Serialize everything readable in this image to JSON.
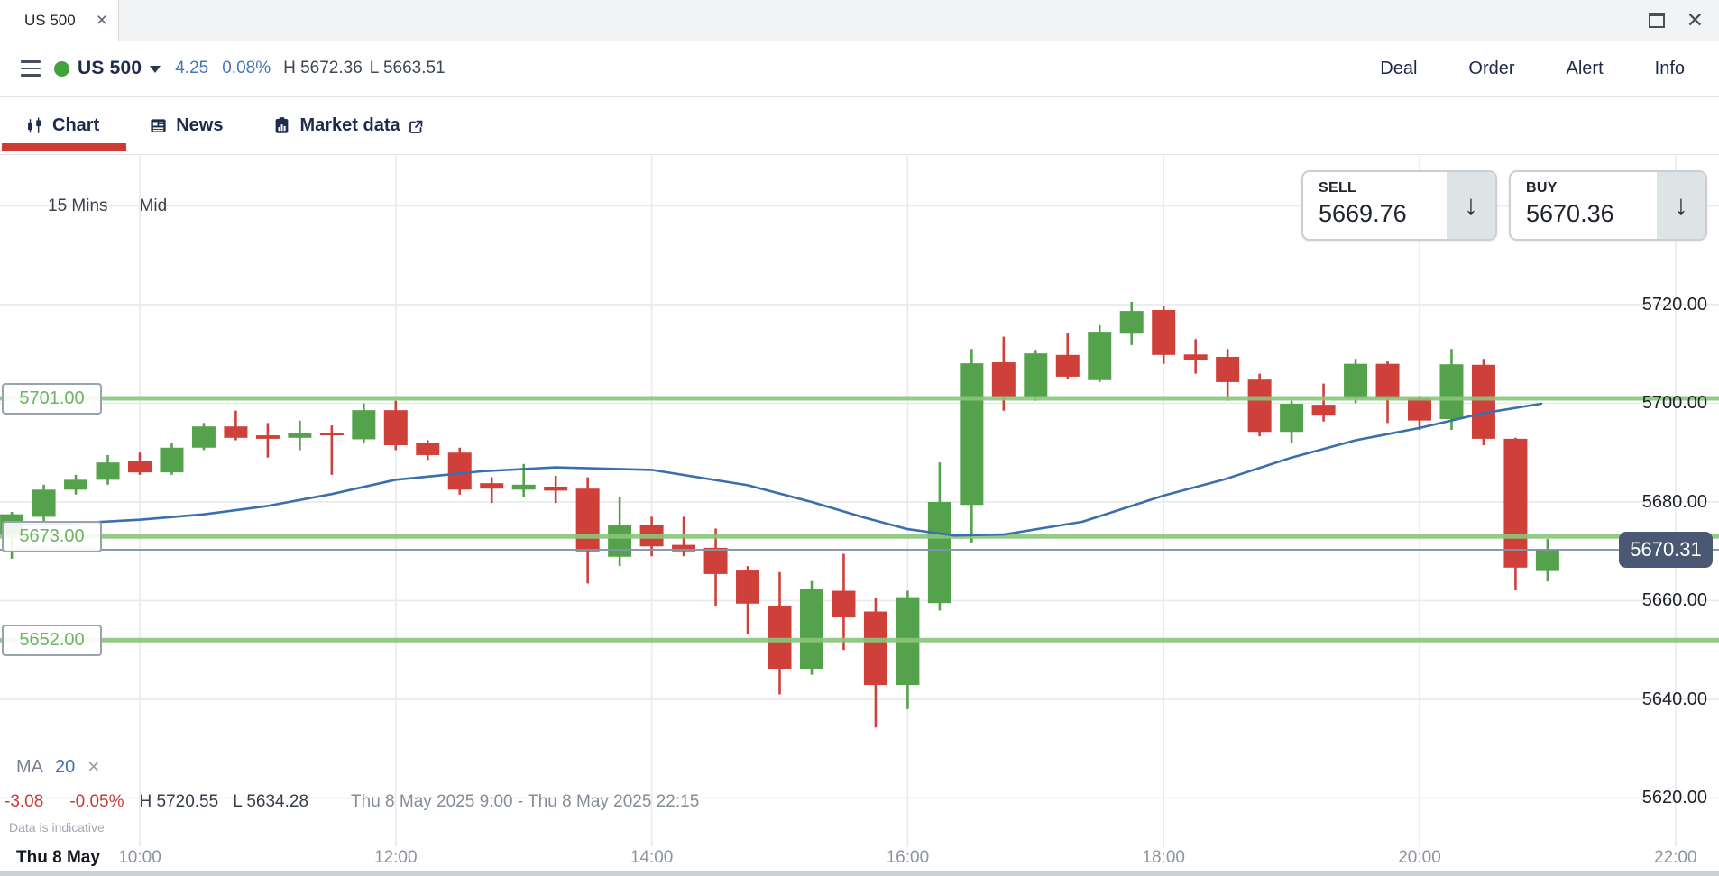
{
  "window": {
    "tab": {
      "title": "US 500",
      "close_glyph": "×"
    },
    "accent_colors": {
      "up_green": "#55a24c",
      "down_red": "#d0403a",
      "level_green": "#8ac57b",
      "ma_blue": "#3a6fad",
      "link_blue": "#4377bd",
      "active_tab_red": "#cf3a33",
      "badge_bg": "#4a5874",
      "status_green": "#3fa23c",
      "grid_gray": "#e8eaed"
    }
  },
  "header": {
    "symbol": "US 500",
    "change": "4.25",
    "change_pct": "0.08%",
    "high": "H 5672.36",
    "low": "L 5663.51",
    "actions": [
      "Deal",
      "Order",
      "Alert",
      "Info"
    ]
  },
  "nav": {
    "tabs": [
      {
        "label": "Chart",
        "icon": "candlestick-icon",
        "active": true
      },
      {
        "label": "News",
        "icon": "news-icon",
        "active": false
      },
      {
        "label": "Market data",
        "icon": "market-data-icon",
        "active": false,
        "external": true
      }
    ]
  },
  "toolbar": {
    "timeframe": "15 Mins",
    "price_mode": "Mid"
  },
  "trade": {
    "sell": {
      "label": "SELL",
      "price": "5669.76"
    },
    "buy": {
      "label": "BUY",
      "price": "5670.36"
    },
    "arrow_glyph": "↓"
  },
  "indicator": {
    "name": "MA",
    "period": "20",
    "close_glyph": "✕"
  },
  "stats": {
    "change": "-3.08",
    "change_pct": "-0.05%",
    "high": "H 5720.55",
    "low": "L 5634.28",
    "range": "Thu 8 May 2025 9:00 - Thu 8 May 2025 22:15"
  },
  "footnote": "Data is indicative",
  "chart_data": {
    "type": "candlestick",
    "symbol": "US 500",
    "timeframe": "15 Mins",
    "price_mode": "Mid",
    "session_high": 5720.55,
    "session_low": 5634.28,
    "current_price": 5670.31,
    "current_price_label": "5670.31",
    "levels": [
      {
        "price": 5701.0,
        "label": "5701.00"
      },
      {
        "price": 5673.0,
        "label": "5673.00"
      },
      {
        "price": 5652.0,
        "label": "5652.00"
      }
    ],
    "y_axis": {
      "ticks": [
        {
          "price": 5720,
          "label": "5720.00"
        },
        {
          "price": 5700,
          "label": "5700.00"
        },
        {
          "price": 5680,
          "label": "5680.00"
        },
        {
          "price": 5660,
          "label": "5660.00"
        },
        {
          "price": 5640,
          "label": "5640.00"
        },
        {
          "price": 5620,
          "label": "5620.00"
        }
      ],
      "gridline_prices": [
        5740,
        5720,
        5700,
        5680,
        5660,
        5640,
        5620
      ],
      "range": [
        5617,
        5745
      ]
    },
    "x_axis": {
      "date_label": "Thu 8 May",
      "ticks": [
        "10:00",
        "12:00",
        "14:00",
        "16:00",
        "18:00",
        "20:00",
        "22:00"
      ]
    },
    "candles": [
      [
        "09:00",
        5673.3,
        5678.0,
        5668.5,
        5677.5
      ],
      [
        "09:15",
        5677.0,
        5683.5,
        5676.0,
        5682.5
      ],
      [
        "09:30",
        5682.5,
        5685.5,
        5681.5,
        5684.5
      ],
      [
        "09:45",
        5684.5,
        5689.5,
        5683.5,
        5688.0
      ],
      [
        "10:00",
        5688.3,
        5690.0,
        5685.5,
        5686.0
      ],
      [
        "10:15",
        5686.0,
        5692.0,
        5685.5,
        5691.0
      ],
      [
        "10:30",
        5691.0,
        5696.0,
        5690.5,
        5695.3
      ],
      [
        "10:45",
        5695.3,
        5698.5,
        5692.5,
        5693.0
      ],
      [
        "11:00",
        5693.5,
        5696.0,
        5689.0,
        5692.8
      ],
      [
        "11:15",
        5693.0,
        5696.5,
        5690.5,
        5694.0
      ],
      [
        "11:30",
        5694.0,
        5695.5,
        5685.5,
        5693.5
      ],
      [
        "11:45",
        5692.7,
        5700.0,
        5692.0,
        5698.6
      ],
      [
        "12:00",
        5698.6,
        5700.5,
        5690.5,
        5691.5
      ],
      [
        "12:15",
        5692.0,
        5692.5,
        5688.5,
        5689.5
      ],
      [
        "12:30",
        5690.0,
        5691.0,
        5681.5,
        5682.5
      ],
      [
        "12:45",
        5683.8,
        5685.0,
        5679.8,
        5682.7
      ],
      [
        "13:00",
        5682.5,
        5687.7,
        5681.0,
        5683.5
      ],
      [
        "13:15",
        5683.1,
        5685.3,
        5679.8,
        5682.3
      ],
      [
        "13:30",
        5682.7,
        5685.0,
        5663.5,
        5670.0
      ],
      [
        "13:45",
        5668.9,
        5681.0,
        5667.0,
        5675.4
      ],
      [
        "14:00",
        5675.4,
        5677.0,
        5669.0,
        5671.0
      ],
      [
        "14:15",
        5671.3,
        5677.0,
        5669.0,
        5670.0
      ],
      [
        "14:30",
        5670.7,
        5674.6,
        5659.0,
        5665.4
      ],
      [
        "14:45",
        5666.1,
        5667.0,
        5653.3,
        5659.4
      ],
      [
        "15:00",
        5659.0,
        5665.8,
        5641.0,
        5646.2
      ],
      [
        "15:15",
        5646.2,
        5664.0,
        5645.0,
        5662.4
      ],
      [
        "15:30",
        5662.0,
        5669.5,
        5650.0,
        5656.6
      ],
      [
        "15:45",
        5657.8,
        5660.5,
        5634.28,
        5642.9
      ],
      [
        "16:00",
        5642.9,
        5662.0,
        5638.0,
        5660.7
      ],
      [
        "16:15",
        5659.5,
        5688.0,
        5658.0,
        5680.0
      ],
      [
        "16:30",
        5679.4,
        5711.0,
        5671.6,
        5708.1
      ],
      [
        "16:45",
        5708.3,
        5713.5,
        5698.5,
        5701.4
      ],
      [
        "17:00",
        5701.4,
        5710.8,
        5700.5,
        5710.1
      ],
      [
        "17:15",
        5709.8,
        5714.3,
        5704.9,
        5705.4
      ],
      [
        "17:30",
        5704.7,
        5715.8,
        5704.3,
        5714.5
      ],
      [
        "17:45",
        5714.1,
        5720.55,
        5711.8,
        5718.7
      ],
      [
        "18:00",
        5718.9,
        5719.6,
        5708.0,
        5709.8
      ],
      [
        "18:15",
        5709.9,
        5713.0,
        5706.0,
        5708.8
      ],
      [
        "18:30",
        5709.4,
        5711.0,
        5700.5,
        5704.3
      ],
      [
        "18:45",
        5704.8,
        5706.0,
        5693.3,
        5694.2
      ],
      [
        "19:00",
        5694.2,
        5700.5,
        5692.0,
        5699.9
      ],
      [
        "19:15",
        5699.7,
        5704.0,
        5696.3,
        5697.5
      ],
      [
        "19:30",
        5701.0,
        5709.0,
        5700.0,
        5708.0
      ],
      [
        "19:45",
        5708.0,
        5708.5,
        5696.0,
        5701.0
      ],
      [
        "20:00",
        5701.0,
        5701.5,
        5694.6,
        5696.5
      ],
      [
        "20:15",
        5696.8,
        5711.0,
        5694.6,
        5707.9
      ],
      [
        "20:30",
        5707.8,
        5709.0,
        5691.5,
        5692.8
      ],
      [
        "20:45",
        5692.8,
        5693.0,
        5662.1,
        5666.7
      ],
      [
        "21:00",
        5666.0,
        5672.5,
        5663.9,
        5670.5
      ]
    ],
    "ma": {
      "name": "MA",
      "period": 20,
      "points": [
        [
          "08:56",
          5675.3
        ],
        [
          "09:30",
          5675.7
        ],
        [
          "10:00",
          5676.4
        ],
        [
          "10:30",
          5677.5
        ],
        [
          "11:00",
          5679.2
        ],
        [
          "11:30",
          5681.6
        ],
        [
          "12:00",
          5684.5
        ],
        [
          "12:40",
          5686.2
        ],
        [
          "13:15",
          5687.0
        ],
        [
          "14:00",
          5686.5
        ],
        [
          "14:45",
          5683.4
        ],
        [
          "15:15",
          5680.0
        ],
        [
          "15:40",
          5676.8
        ],
        [
          "16:00",
          5674.5
        ],
        [
          "16:22",
          5673.2
        ],
        [
          "16:45",
          5673.4
        ],
        [
          "17:22",
          5676.0
        ],
        [
          "18:00",
          5681.3
        ],
        [
          "18:28",
          5684.5
        ],
        [
          "19:00",
          5689.0
        ],
        [
          "19:30",
          5692.5
        ],
        [
          "20:00",
          5695.0
        ],
        [
          "20:30",
          5698.0
        ],
        [
          "20:57",
          5699.9
        ]
      ]
    }
  }
}
